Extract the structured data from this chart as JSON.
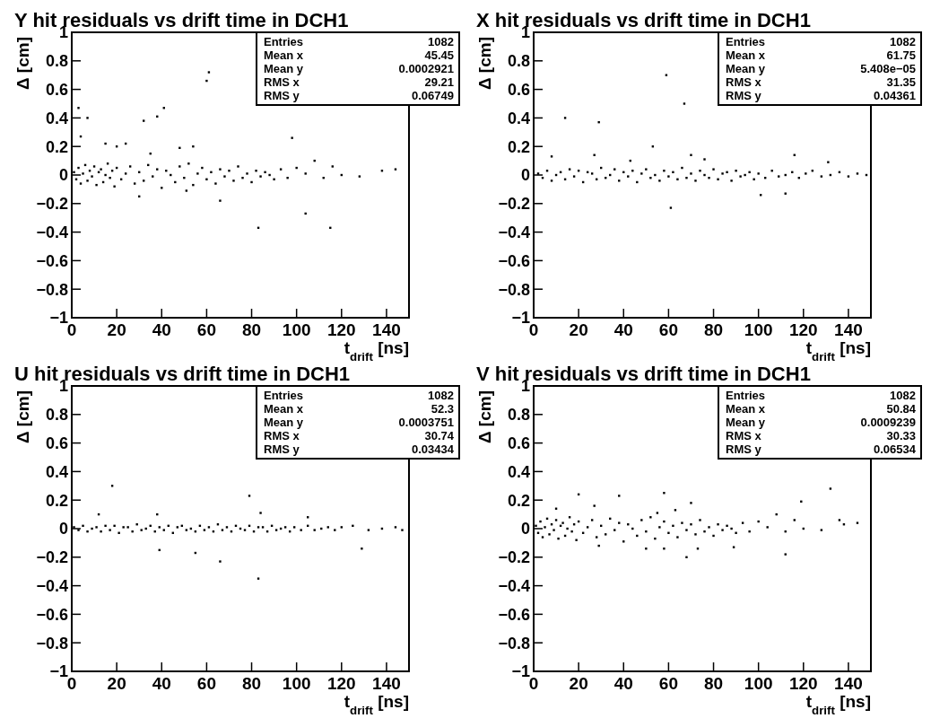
{
  "chart_data": [
    {
      "type": "scatter",
      "title": "Y hit residuals vs drift time in DCH1",
      "xlabel": "t$_{drift}$ [ns]",
      "ylabel": "Δ [cm]",
      "color": "#000000",
      "marker": "square",
      "xlim": [
        0,
        150
      ],
      "xticks": [
        0,
        20,
        40,
        60,
        80,
        100,
        120,
        140
      ],
      "ylim": [
        -1,
        1
      ],
      "yticks": [
        {
          "value": -1,
          "label": "−1"
        },
        {
          "value": -0.8,
          "label": "−0.8"
        },
        {
          "value": -0.6,
          "label": "−0.6"
        },
        {
          "value": -0.4,
          "label": "−0.4"
        },
        {
          "value": -0.2,
          "label": "−0.2"
        },
        0,
        0.2,
        0.4,
        0.6,
        0.8,
        1
      ],
      "annotations": [
        "Entries",
        "1082",
        "Mean x",
        "45.45",
        "Mean y",
        "0.0002921",
        "RMS x",
        "29.21",
        "RMS y",
        "0.06749"
      ],
      "x": [
        1,
        2,
        3,
        4,
        5,
        6,
        7,
        8,
        9,
        10,
        11,
        12,
        13,
        14,
        15,
        16,
        17,
        18,
        19,
        20,
        22,
        24,
        26,
        28,
        30,
        32,
        34,
        36,
        38,
        40,
        42,
        44,
        46,
        48,
        50,
        52,
        54,
        56,
        58,
        60,
        62,
        64,
        66,
        68,
        70,
        72,
        74,
        76,
        78,
        80,
        82,
        84,
        86,
        88,
        90,
        93,
        96,
        100,
        104,
        108,
        112,
        116,
        120,
        128,
        138,
        144,
        3,
        7,
        4,
        15,
        20,
        24,
        32,
        38,
        41,
        61,
        60,
        98,
        48,
        54,
        35,
        83,
        115,
        104,
        51,
        30,
        66
      ],
      "values": [
        0.02,
        -0.03,
        0.05,
        -0.06,
        0.01,
        0.07,
        -0.04,
        0.03,
        -0.01,
        0.06,
        -0.07,
        0.02,
        0.04,
        -0.05,
        0.0,
        0.08,
        -0.02,
        0.03,
        -0.08,
        0.05,
        -0.03,
        0.01,
        0.06,
        -0.06,
        0.02,
        -0.04,
        0.07,
        -0.01,
        0.04,
        -0.09,
        0.03,
        0.0,
        -0.05,
        0.06,
        -0.02,
        0.08,
        -0.07,
        0.01,
        0.05,
        -0.03,
        0.02,
        -0.06,
        0.04,
        -0.01,
        0.03,
        -0.04,
        0.06,
        -0.02,
        0.01,
        -0.05,
        0.03,
        -0.01,
        0.02,
        0.0,
        -0.03,
        0.04,
        -0.02,
        0.05,
        0.01,
        0.1,
        -0.02,
        0.06,
        0.0,
        -0.01,
        0.03,
        0.04,
        0.47,
        0.4,
        0.27,
        0.22,
        0.2,
        0.22,
        0.38,
        0.41,
        0.47,
        0.72,
        0.66,
        0.26,
        0.19,
        0.2,
        0.15,
        -0.37,
        -0.37,
        -0.27,
        -0.11,
        -0.15,
        -0.18
      ]
    },
    {
      "type": "scatter",
      "title": "X hit residuals vs drift time in DCH1",
      "xlabel": "t$_{drift}$ [ns]",
      "ylabel": "Δ [cm]",
      "color": "#000000",
      "marker": "square",
      "xlim": [
        0,
        150
      ],
      "xticks": [
        0,
        20,
        40,
        60,
        80,
        100,
        120,
        140
      ],
      "ylim": [
        -1,
        1
      ],
      "yticks": [
        {
          "value": -1,
          "label": "−1"
        },
        {
          "value": -0.8,
          "label": "−0.8"
        },
        {
          "value": -0.6,
          "label": "−0.6"
        },
        {
          "value": -0.4,
          "label": "−0.4"
        },
        {
          "value": -0.2,
          "label": "−0.2"
        },
        0,
        0.2,
        0.4,
        0.6,
        0.8,
        1
      ],
      "annotations": [
        "Entries",
        "1082",
        "Mean x",
        "61.75",
        "Mean y",
        "5.408e−05",
        "RMS x",
        "31.35",
        "RMS y",
        "0.04361"
      ],
      "x": [
        2,
        4,
        6,
        8,
        10,
        12,
        14,
        16,
        18,
        20,
        22,
        24,
        26,
        28,
        30,
        32,
        34,
        36,
        38,
        40,
        42,
        44,
        46,
        48,
        50,
        52,
        54,
        56,
        58,
        60,
        62,
        64,
        66,
        68,
        70,
        72,
        74,
        76,
        78,
        80,
        82,
        84,
        86,
        88,
        90,
        92,
        94,
        96,
        98,
        100,
        103,
        106,
        109,
        112,
        115,
        118,
        121,
        124,
        128,
        132,
        136,
        140,
        144,
        148,
        59,
        67,
        14,
        29,
        53,
        8,
        27,
        70,
        76,
        116,
        131,
        61,
        101,
        112,
        43
      ],
      "values": [
        0.01,
        -0.02,
        0.03,
        -0.04,
        0.0,
        0.02,
        -0.03,
        0.04,
        -0.01,
        0.03,
        -0.05,
        0.02,
        0.01,
        -0.03,
        0.05,
        -0.02,
        0.0,
        0.04,
        -0.04,
        0.02,
        -0.01,
        0.03,
        -0.05,
        0.01,
        0.04,
        -0.02,
        0.0,
        -0.04,
        0.03,
        -0.01,
        0.02,
        -0.03,
        0.05,
        -0.02,
        0.01,
        -0.04,
        0.03,
        0.0,
        -0.02,
        0.04,
        -0.03,
        0.01,
        0.02,
        -0.04,
        0.03,
        -0.01,
        0.0,
        0.02,
        -0.03,
        0.01,
        -0.02,
        0.03,
        -0.01,
        0.0,
        0.02,
        -0.02,
        0.01,
        0.03,
        -0.01,
        0.0,
        0.02,
        -0.01,
        0.01,
        0.0,
        0.7,
        0.5,
        0.4,
        0.37,
        0.2,
        0.13,
        0.14,
        0.14,
        0.11,
        0.14,
        0.09,
        -0.23,
        -0.14,
        -0.13,
        0.1
      ]
    },
    {
      "type": "scatter",
      "title": "U hit residuals vs drift time in DCH1",
      "xlabel": "t$_{drift}$ [ns]",
      "ylabel": "Δ [cm]",
      "color": "#000000",
      "marker": "square",
      "xlim": [
        0,
        150
      ],
      "xticks": [
        0,
        20,
        40,
        60,
        80,
        100,
        120,
        140
      ],
      "ylim": [
        -1,
        1
      ],
      "yticks": [
        {
          "value": -1,
          "label": "−1"
        },
        {
          "value": -0.8,
          "label": "−0.8"
        },
        {
          "value": -0.6,
          "label": "−0.6"
        },
        {
          "value": -0.4,
          "label": "−0.4"
        },
        {
          "value": -0.2,
          "label": "−0.2"
        },
        0,
        0.2,
        0.4,
        0.6,
        0.8,
        1
      ],
      "annotations": [
        "Entries",
        "1082",
        "Mean x",
        "52.3",
        "Mean y",
        "0.0003751",
        "RMS x",
        "30.74",
        "RMS y",
        "0.03434"
      ],
      "x": [
        1,
        3,
        5,
        7,
        9,
        11,
        13,
        15,
        17,
        19,
        21,
        23,
        25,
        27,
        29,
        31,
        33,
        35,
        37,
        39,
        41,
        43,
        45,
        47,
        49,
        51,
        53,
        55,
        57,
        59,
        61,
        63,
        65,
        67,
        69,
        71,
        73,
        75,
        77,
        79,
        81,
        83,
        85,
        87,
        89,
        91,
        93,
        95,
        97,
        99,
        102,
        105,
        108,
        111,
        114,
        117,
        120,
        125,
        132,
        138,
        144,
        147,
        18,
        79,
        84,
        12,
        38,
        105,
        55,
        39,
        129,
        66,
        83
      ],
      "values": [
        0.01,
        -0.01,
        0.02,
        -0.02,
        0.0,
        0.01,
        -0.02,
        0.02,
        -0.01,
        0.02,
        -0.03,
        0.01,
        0.01,
        -0.02,
        0.03,
        -0.01,
        0.0,
        0.02,
        -0.02,
        0.01,
        -0.01,
        0.02,
        -0.03,
        0.01,
        0.02,
        -0.01,
        0.0,
        -0.02,
        0.02,
        -0.01,
        0.01,
        -0.02,
        0.03,
        -0.01,
        0.01,
        -0.02,
        0.02,
        0.0,
        -0.01,
        0.02,
        -0.02,
        0.01,
        0.01,
        -0.02,
        0.02,
        -0.01,
        0.0,
        0.01,
        -0.02,
        0.01,
        -0.01,
        0.02,
        -0.01,
        0.0,
        0.01,
        -0.01,
        0.01,
        0.02,
        -0.01,
        0.0,
        0.01,
        -0.01,
        0.3,
        0.23,
        0.11,
        0.1,
        0.1,
        0.08,
        -0.17,
        -0.15,
        -0.14,
        -0.23,
        -0.35
      ]
    },
    {
      "type": "scatter",
      "title": "V hit residuals vs drift time in DCH1",
      "xlabel": "t$_{drift}$ [ns]",
      "ylabel": "Δ [cm]",
      "color": "#000000",
      "marker": "square",
      "xlim": [
        0,
        150
      ],
      "xticks": [
        0,
        20,
        40,
        60,
        80,
        100,
        120,
        140
      ],
      "ylim": [
        -1,
        1
      ],
      "yticks": [
        {
          "value": -1,
          "label": "−1"
        },
        {
          "value": -0.8,
          "label": "−0.8"
        },
        {
          "value": -0.6,
          "label": "−0.6"
        },
        {
          "value": -0.4,
          "label": "−0.4"
        },
        {
          "value": -0.2,
          "label": "−0.2"
        },
        0,
        0.2,
        0.4,
        0.6,
        0.8,
        1
      ],
      "annotations": [
        "Entries",
        "1082",
        "Mean x",
        "50.84",
        "Mean y",
        "0.0009239",
        "RMS x",
        "30.33",
        "RMS y",
        "0.06534"
      ],
      "x": [
        1,
        2,
        3,
        4,
        5,
        6,
        7,
        8,
        9,
        10,
        11,
        12,
        13,
        14,
        15,
        16,
        17,
        18,
        19,
        20,
        22,
        24,
        26,
        28,
        30,
        32,
        34,
        36,
        38,
        40,
        42,
        44,
        46,
        48,
        50,
        52,
        54,
        56,
        58,
        60,
        62,
        64,
        66,
        68,
        70,
        72,
        74,
        76,
        78,
        80,
        82,
        84,
        86,
        88,
        90,
        93,
        96,
        100,
        104,
        108,
        112,
        116,
        120,
        128,
        138,
        144,
        20,
        38,
        58,
        132,
        119,
        10,
        27,
        70,
        55,
        63,
        136,
        58,
        73,
        89,
        50,
        29,
        112,
        68
      ],
      "values": [
        0.02,
        -0.03,
        0.05,
        -0.06,
        0.01,
        0.07,
        -0.04,
        0.03,
        -0.01,
        0.06,
        -0.07,
        0.02,
        0.04,
        -0.05,
        0.0,
        0.08,
        -0.02,
        0.03,
        -0.08,
        0.05,
        -0.03,
        0.01,
        0.06,
        -0.06,
        0.02,
        -0.04,
        0.07,
        -0.01,
        0.04,
        -0.09,
        0.03,
        0.0,
        -0.05,
        0.06,
        -0.02,
        0.08,
        -0.07,
        0.01,
        0.05,
        -0.03,
        0.02,
        -0.06,
        0.04,
        -0.01,
        0.03,
        -0.04,
        0.06,
        -0.02,
        0.01,
        -0.05,
        0.03,
        -0.01,
        0.02,
        0.0,
        -0.03,
        0.04,
        -0.02,
        0.05,
        0.01,
        0.1,
        -0.02,
        0.06,
        0.0,
        -0.01,
        0.03,
        0.04,
        0.24,
        0.23,
        0.25,
        0.28,
        0.19,
        0.14,
        0.16,
        0.18,
        0.11,
        0.13,
        0.06,
        -0.14,
        -0.14,
        -0.13,
        -0.14,
        -0.12,
        -0.18,
        -0.2
      ]
    }
  ]
}
